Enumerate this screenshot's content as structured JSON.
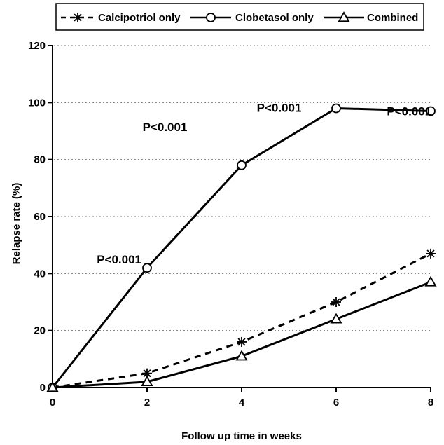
{
  "chart_data": {
    "type": "line",
    "title": "",
    "xlabel": "Follow up time in weeks",
    "ylabel": "Relapse rate (%)",
    "x": [
      0,
      2,
      4,
      6,
      8
    ],
    "xlim": [
      0,
      8
    ],
    "ylim": [
      0,
      120
    ],
    "xticks": [
      "0",
      "2",
      "4",
      "6",
      "8"
    ],
    "yticks": [
      "0",
      "20",
      "40",
      "60",
      "80",
      "100",
      "120"
    ],
    "grid": "dotted horizontal",
    "legend_position": "top",
    "series": [
      {
        "name": "Calcipotriol only",
        "values": [
          0,
          5,
          16,
          30,
          47
        ],
        "line": "dashed",
        "marker": "asterisk",
        "color": "#000000"
      },
      {
        "name": "Clobetasol only",
        "values": [
          0,
          42,
          78,
          98,
          97
        ],
        "line": "solid",
        "marker": "circle",
        "color": "#000000"
      },
      {
        "name": "Combined",
        "values": [
          0,
          2,
          11,
          24,
          37
        ],
        "line": "solid",
        "marker": "triangle",
        "color": "#000000"
      }
    ],
    "annotations": [
      {
        "text": "P<0.001",
        "x": 2,
        "y": 42
      },
      {
        "text": "P<0.001",
        "x": 3,
        "y": 90
      },
      {
        "text": "P<0.001",
        "x": 5,
        "y": 96
      },
      {
        "text": "P<0.001",
        "x": 7.9,
        "y": 97
      }
    ]
  }
}
